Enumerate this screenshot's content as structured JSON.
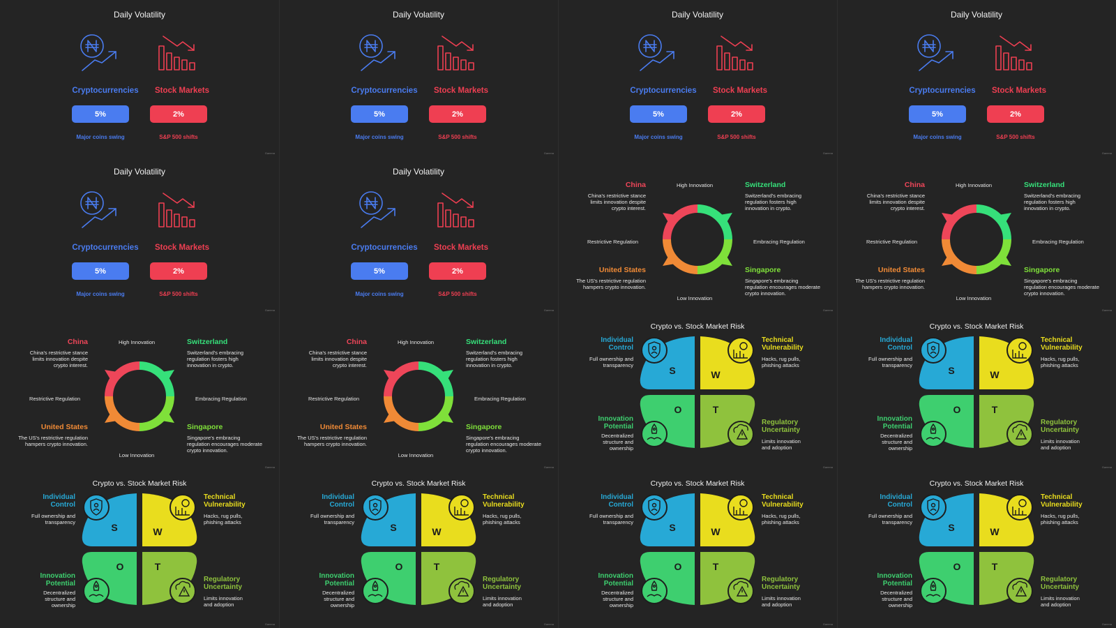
{
  "volatility": {
    "title": "Daily Volatility",
    "crypto": {
      "label": "Cryptocurrencies",
      "value": "5%",
      "caption": "Major coins swing"
    },
    "stock": {
      "label": "Stock Markets",
      "value": "2%",
      "caption": "S&P 500 shifts"
    },
    "colors": {
      "crypto": "#4a7cf0",
      "stock": "#ef3f52"
    },
    "icons": [
      "naira-coin-rising-icon",
      "bar-chart-falling-icon"
    ]
  },
  "regulation": {
    "axis_top": "High Innovation",
    "axis_bottom": "Low Innovation",
    "axis_left": "Restrictive Regulation",
    "axis_right": "Embracing Regulation",
    "china": {
      "name": "China",
      "text": "China's restrictive stance limits innovation despite crypto interest."
    },
    "switzerland": {
      "name": "Switzerland",
      "text": "Switzerland's embracing regulation fosters high innovation in crypto."
    },
    "united_states": {
      "name": "United States",
      "text": "The US's restrictive regulation hampers crypto innovation."
    },
    "singapore": {
      "name": "Singapore",
      "text": "Singapore's embracing regulation encourages moderate crypto innovation."
    },
    "colors": {
      "china": "#ee4659",
      "switzerland": "#36e07a",
      "united_states": "#f08a36",
      "singapore": "#7fe03a"
    }
  },
  "swot": {
    "title": "Crypto vs. Stock Market Risk",
    "s": {
      "letter": "S",
      "head": "Individual Control",
      "text": "Full ownership and transparency",
      "icon": "shield-person-icon"
    },
    "w": {
      "letter": "W",
      "head": "Technical Vulnerability",
      "text": "Hacks, rug pulls, phishing attacks",
      "icon": "skull-chart-icon"
    },
    "o": {
      "letter": "O",
      "head": "Innovation Potential",
      "text": "Decentralized structure and ownership",
      "icon": "rocket-hand-icon"
    },
    "t": {
      "letter": "T",
      "head": "Regulatory Uncertainty",
      "text": "Limits innovation and adoption",
      "icon": "cloud-warning-icon"
    },
    "colors": {
      "s": "#27a9d6",
      "w": "#e9dd1e",
      "o": "#3ecf6f",
      "t": "#8fc23d"
    }
  },
  "watermark": "Gamma",
  "layout": [
    [
      "volatility",
      "volatility",
      "volatility",
      "volatility"
    ],
    [
      "volatility",
      "volatility",
      "regulation",
      "regulation"
    ],
    [
      "regulation",
      "regulation",
      "swot",
      "swot"
    ],
    [
      "swot",
      "swot",
      "swot",
      "swot"
    ]
  ]
}
